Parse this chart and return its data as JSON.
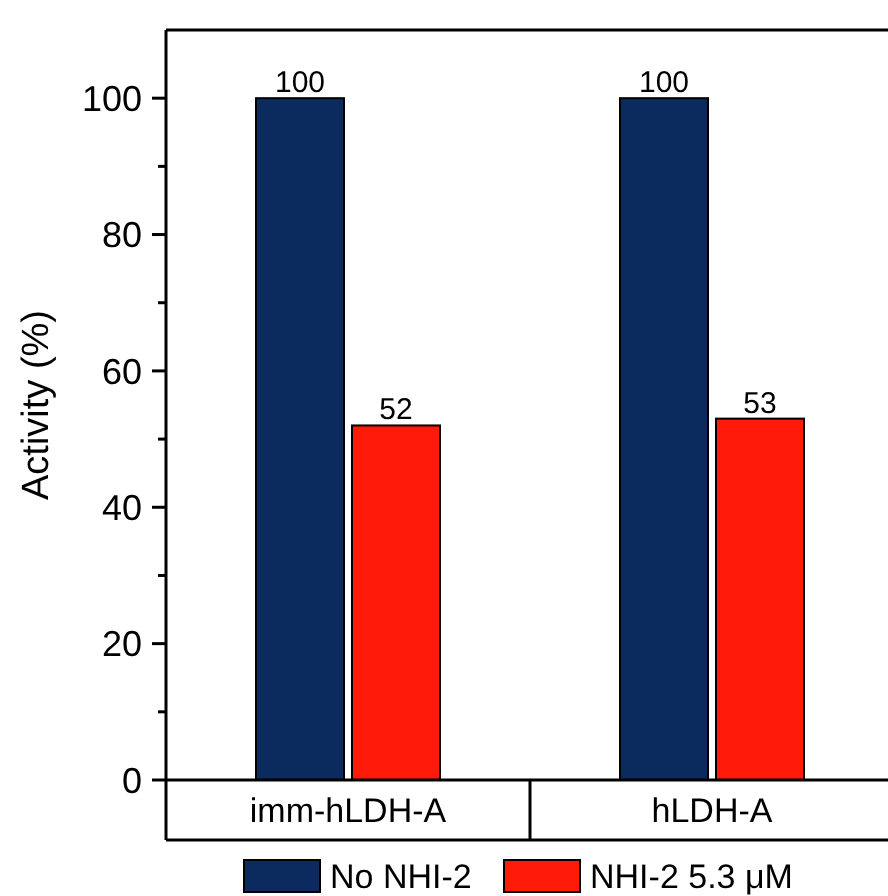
{
  "chart_data": {
    "type": "bar",
    "ylabel": "Activity (%)",
    "categories": [
      "imm-hLDH-A",
      "hLDH-A"
    ],
    "series": [
      {
        "name": "No NHI-2",
        "color": "#0b2a5e",
        "values": [
          100,
          100
        ]
      },
      {
        "name": "NHI-2 5.3 μM",
        "color": "#ff1a0a",
        "values": [
          52,
          53
        ]
      }
    ],
    "ylim": [
      0,
      110
    ],
    "yticks": [
      0,
      {
        "value": 10,
        "label": null
      },
      20,
      {
        "value": 30,
        "label": null
      },
      40,
      {
        "value": 50,
        "label": null
      },
      60,
      {
        "value": 70,
        "label": null
      },
      80,
      {
        "value": 90,
        "label": null
      },
      100
    ],
    "data_labels": true,
    "legend": "bottom"
  }
}
